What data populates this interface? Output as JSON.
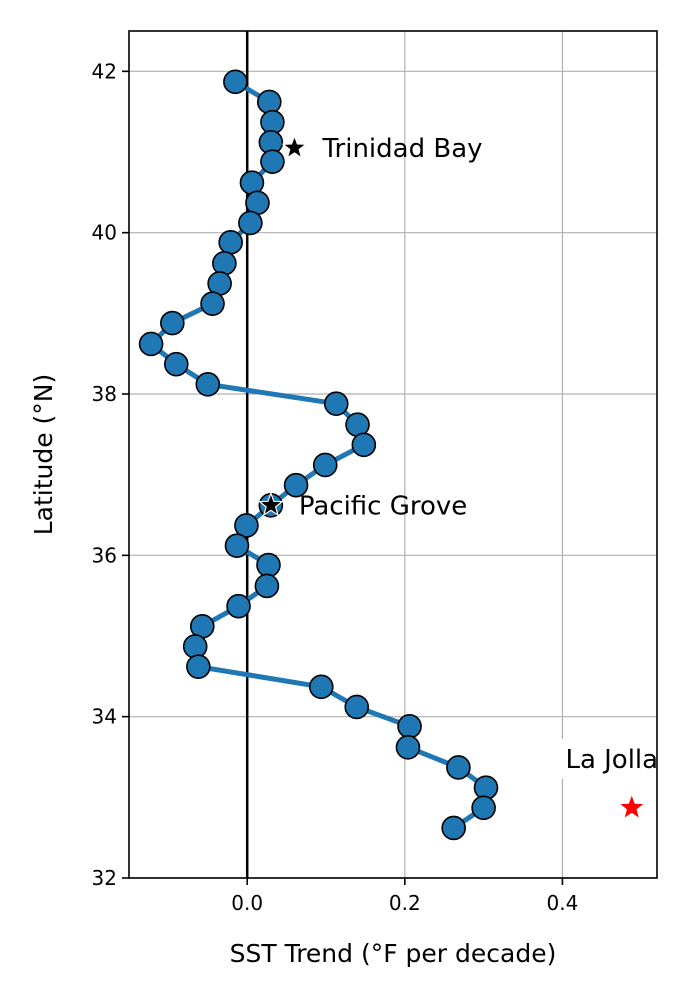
{
  "chart_data": {
    "type": "line",
    "title": "",
    "xlabel": "SST Trend (°F per decade)",
    "ylabel": "Latitude (°N)",
    "xlim": [
      -0.15,
      0.52
    ],
    "ylim": [
      32,
      42.5
    ],
    "xticks": [
      0.0,
      0.2,
      0.4
    ],
    "yticks": [
      32,
      34,
      36,
      38,
      40,
      42
    ],
    "xtick_labels": [
      "0.0",
      "0.2",
      "0.4"
    ],
    "ytick_labels": [
      "32",
      "34",
      "36",
      "38",
      "40",
      "42"
    ],
    "grid": true,
    "zero_line_x": 0,
    "series": [
      {
        "color": "#1f77b4",
        "marker": "circle",
        "points": [
          [
            -0.015,
            41.87
          ],
          [
            0.028,
            41.62
          ],
          [
            0.032,
            41.37
          ],
          [
            0.03,
            41.12
          ],
          [
            0.032,
            40.88
          ],
          [
            0.006,
            40.62
          ],
          [
            0.013,
            40.37
          ],
          [
            0.004,
            40.12
          ],
          [
            -0.021,
            39.88
          ],
          [
            -0.029,
            39.62
          ],
          [
            -0.035,
            39.37
          ],
          [
            -0.044,
            39.12
          ],
          [
            -0.095,
            38.88
          ],
          [
            -0.122,
            38.62
          ],
          [
            -0.09,
            38.37
          ],
          [
            -0.05,
            38.12
          ],
          [
            0.113,
            37.88
          ],
          [
            0.14,
            37.62
          ],
          [
            0.148,
            37.37
          ],
          [
            0.099,
            37.12
          ],
          [
            0.062,
            36.87
          ],
          [
            0.03,
            36.62
          ],
          [
            -0.001,
            36.37
          ],
          [
            -0.013,
            36.12
          ],
          [
            0.027,
            35.88
          ],
          [
            0.025,
            35.62
          ],
          [
            -0.011,
            35.37
          ],
          [
            -0.057,
            35.12
          ],
          [
            -0.066,
            34.87
          ],
          [
            -0.062,
            34.62
          ],
          [
            0.094,
            34.37
          ],
          [
            0.139,
            34.12
          ],
          [
            0.206,
            33.88
          ],
          [
            0.204,
            33.62
          ],
          [
            0.268,
            33.37
          ],
          [
            0.303,
            33.12
          ],
          [
            0.3,
            32.87
          ],
          [
            0.262,
            32.62
          ]
        ]
      }
    ],
    "annotations": [
      {
        "label": "Trinidad Bay",
        "x": 0.06,
        "y": 41.05,
        "marker": "star",
        "marker_color": "#000000"
      },
      {
        "label": "Pacific Grove",
        "x": 0.03,
        "y": 36.62,
        "marker": "star",
        "marker_color": "#000000"
      },
      {
        "label": "La Jolla",
        "x": 0.488,
        "y": 32.87,
        "marker": "star",
        "marker_color": "#ff0000"
      }
    ]
  }
}
